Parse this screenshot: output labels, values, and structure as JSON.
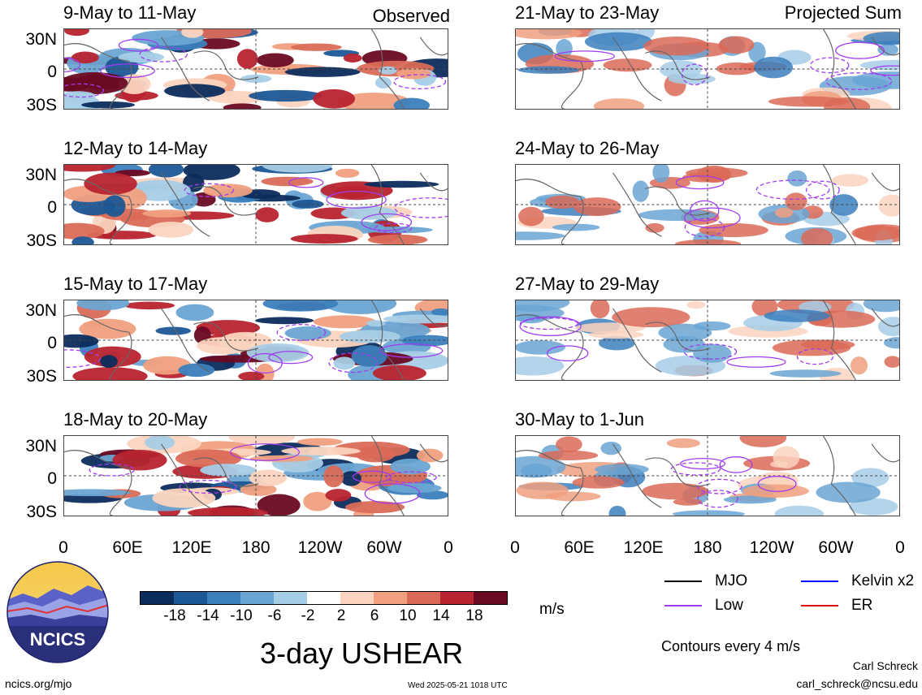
{
  "columns": {
    "left_label": "Observed",
    "right_label": "Projected Sum"
  },
  "panels_left": [
    {
      "title": "9-May to 11-May"
    },
    {
      "title": "12-May to 14-May"
    },
    {
      "title": "15-May to 17-May"
    },
    {
      "title": "18-May to 20-May"
    }
  ],
  "panels_right": [
    {
      "title": "21-May to 23-May"
    },
    {
      "title": "24-May to 26-May"
    },
    {
      "title": "27-May to 29-May"
    },
    {
      "title": "30-May to 1-Jun"
    }
  ],
  "lat_labels": [
    "30N",
    "0",
    "30S"
  ],
  "lon_labels": [
    "0",
    "60E",
    "120E",
    "180",
    "120W",
    "60W",
    "0"
  ],
  "colorbar": {
    "labels": [
      "-18",
      "-14",
      "-10",
      "-6",
      "-2",
      "2",
      "6",
      "10",
      "14",
      "18"
    ],
    "colors": [
      "#0c2c5c",
      "#1c5796",
      "#3b7fbd",
      "#6aa5d3",
      "#a6cde6",
      "#ffffff",
      "#fbd4bf",
      "#f0a07f",
      "#da6a57",
      "#b8242f",
      "#6a0a23"
    ],
    "units": "m/s"
  },
  "legend": {
    "items": [
      {
        "label": "MJO",
        "color": "#000000"
      },
      {
        "label": "Kelvin x2",
        "color": "#0000ff"
      },
      {
        "label": "Low",
        "color": "#a03cf0"
      },
      {
        "label": "ER",
        "color": "#e01010"
      }
    ],
    "note": "Contours every 4 m/s"
  },
  "title": "3-day USHEAR",
  "logo_text": "NCICS",
  "footer": {
    "url": "ncics.org/mjo",
    "timestamp": "Wed 2025-05-21 1018 UTC",
    "author": "Carl Schreck",
    "email": "carl_schreck@ncsu.edu"
  }
}
